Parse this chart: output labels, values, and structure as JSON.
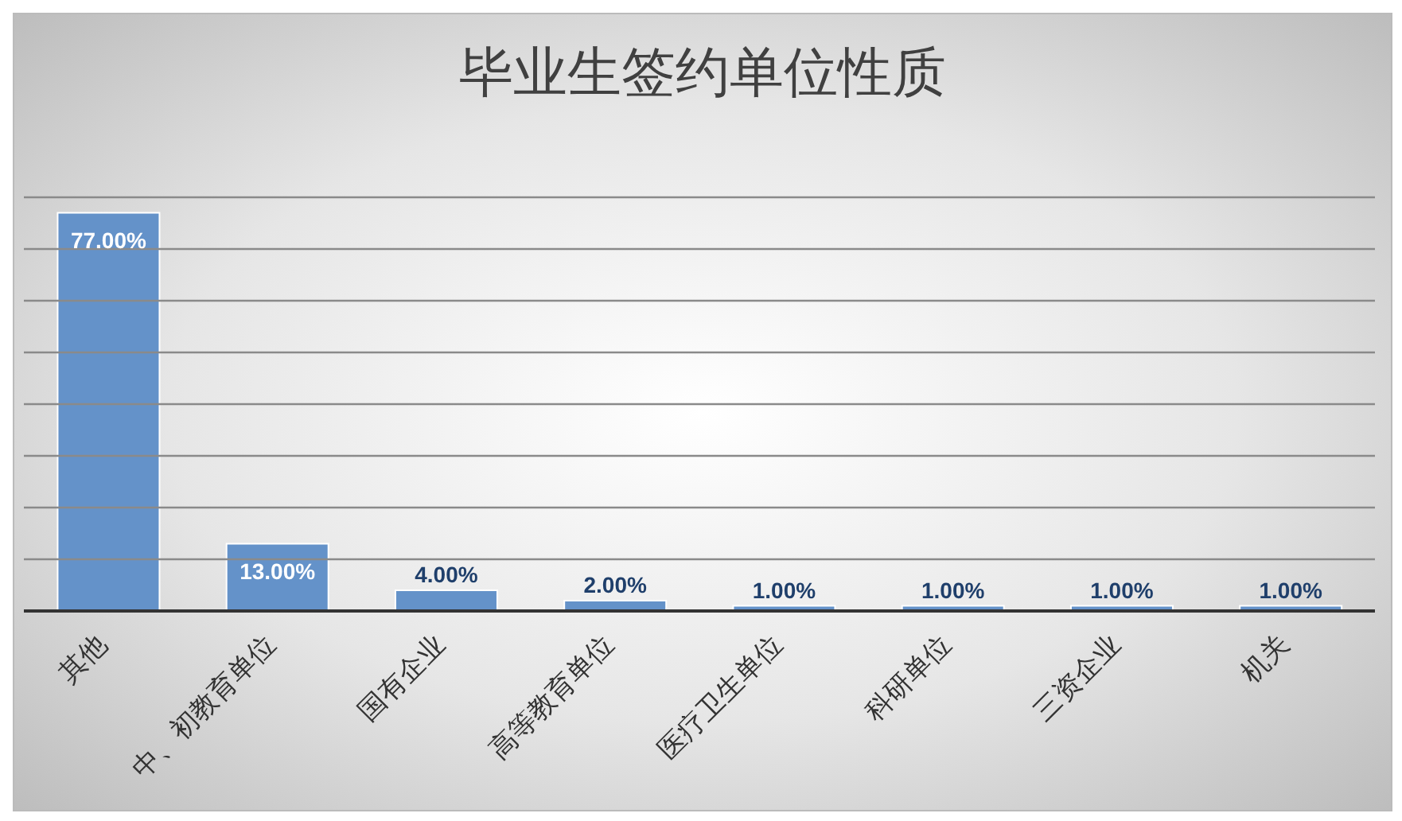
{
  "chart_data": {
    "type": "bar",
    "title": "毕业生签约单位性质",
    "categories": [
      "其他",
      "中、初教育单位",
      "国有企业",
      "高等教育单位",
      "医疗卫生单位",
      "科研单位",
      "三资企业",
      "机关"
    ],
    "values": [
      77,
      13,
      4,
      2,
      1,
      1,
      1,
      1
    ],
    "value_labels": [
      "77.00%",
      "13.00%",
      "4.00%",
      "2.00%",
      "1.00%",
      "1.00%",
      "1.00%",
      "1.00%"
    ],
    "color": "#6492c9",
    "ylim": [
      0,
      80
    ],
    "yticks": [
      {
        "value": 0,
        "label": null
      },
      {
        "value": 10,
        "label": null
      },
      {
        "value": 20,
        "label": null
      },
      {
        "value": 30,
        "label": null
      },
      {
        "value": 40,
        "label": null
      },
      {
        "value": 50,
        "label": null
      },
      {
        "value": 60,
        "label": null
      },
      {
        "value": 70,
        "label": null
      },
      {
        "value": 80,
        "label": null
      }
    ],
    "grid": "y",
    "tick_labels": "x"
  }
}
